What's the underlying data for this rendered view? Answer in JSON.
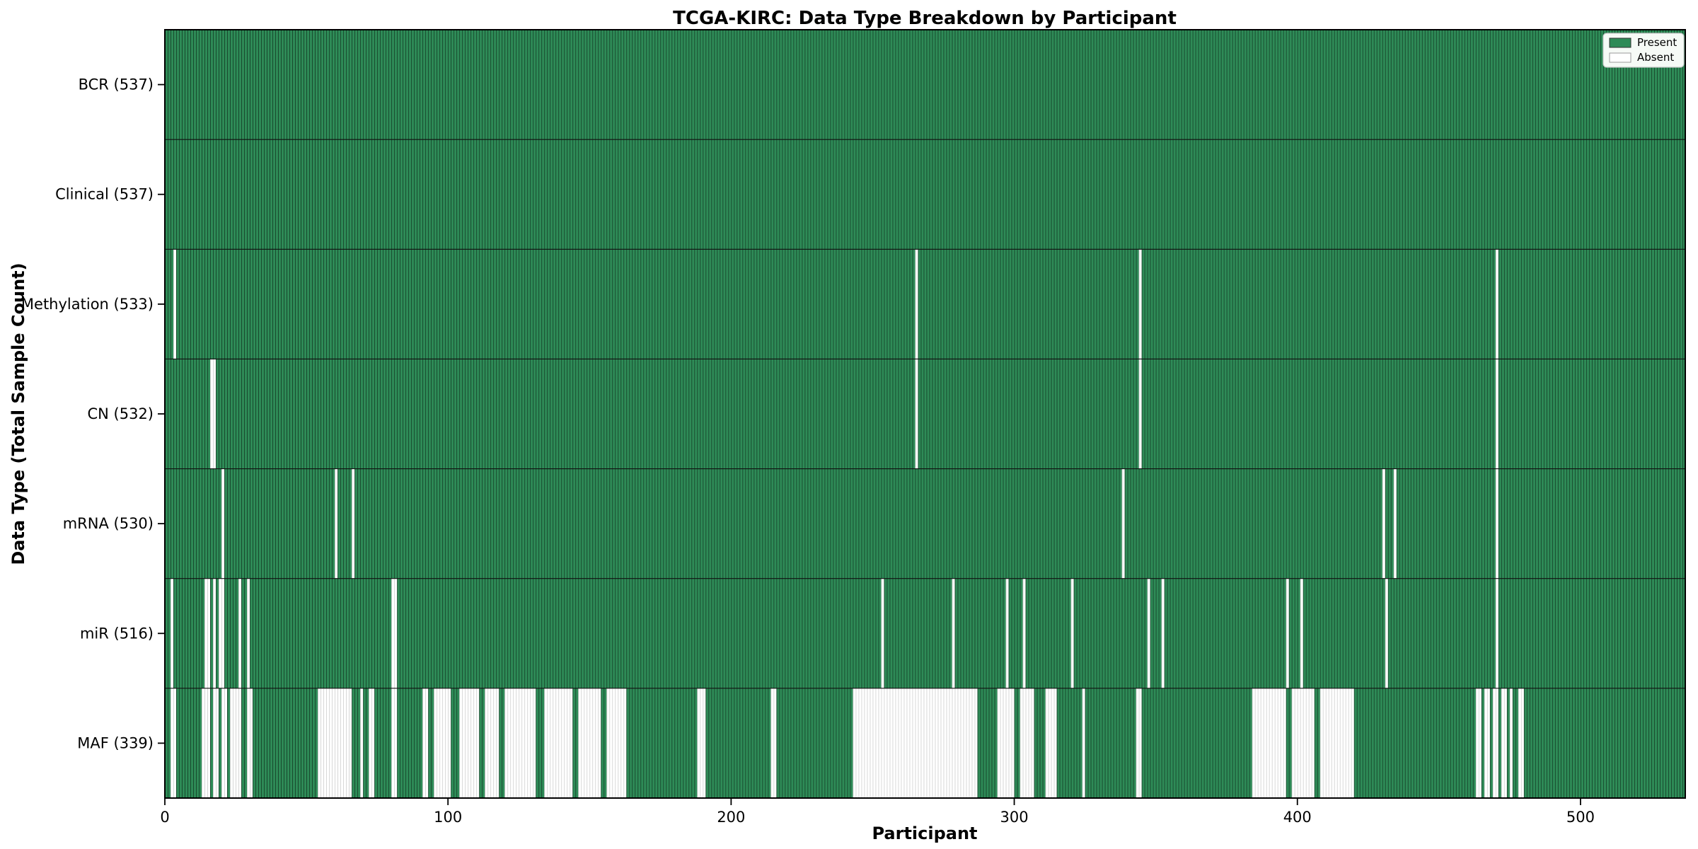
{
  "colors": {
    "present": "#2e8b57",
    "absent": "#ffffff",
    "present_edge": "rgba(0,0,0,0.50)",
    "absent_edge": "rgba(0,0,0,0.17)",
    "axis": "#000000",
    "separator": "#111111",
    "legend_bg": "#f6faf6",
    "legend_border": "#c9c9c9",
    "legend_swatch_edge": "#333333"
  },
  "chart_data": {
    "type": "heatmap",
    "title": "TCGA-KIRC: Data Type Breakdown by Participant",
    "xlabel": "Participant",
    "ylabel": "Data Type (Total Sample Count)",
    "x_ticks": [
      0,
      100,
      200,
      300,
      400,
      500
    ],
    "x_range": [
      0,
      537
    ],
    "total_participants": 537,
    "grid": false,
    "legend": {
      "position": "upper right",
      "entries": [
        {
          "label": "Present",
          "color": "#2e8b57"
        },
        {
          "label": "Absent",
          "color": "#ffffff"
        }
      ]
    },
    "rows": [
      {
        "label": "BCR (537)",
        "data_type": "BCR",
        "present_count": 537,
        "absent_ranges": []
      },
      {
        "label": "Clinical (537)",
        "data_type": "Clinical",
        "present_count": 537,
        "absent_ranges": []
      },
      {
        "label": "Methylation (533)",
        "data_type": "Methylation",
        "present_count": 533,
        "absent_ranges": [
          [
            3,
            3
          ],
          [
            265,
            265
          ],
          [
            344,
            344
          ],
          [
            470,
            470
          ]
        ]
      },
      {
        "label": "CN (532)",
        "data_type": "CN",
        "present_count": 532,
        "absent_ranges": [
          [
            16,
            17
          ],
          [
            265,
            265
          ],
          [
            344,
            344
          ],
          [
            470,
            470
          ]
        ]
      },
      {
        "label": "mRNA (530)",
        "data_type": "mRNA",
        "present_count": 530,
        "absent_ranges": [
          [
            20,
            20
          ],
          [
            60,
            60
          ],
          [
            66,
            66
          ],
          [
            338,
            338
          ],
          [
            430,
            430
          ],
          [
            434,
            434
          ],
          [
            470,
            470
          ]
        ]
      },
      {
        "label": "miR (516)",
        "data_type": "miR",
        "present_count": 516,
        "absent_ranges": [
          [
            2,
            2
          ],
          [
            14,
            15
          ],
          [
            17,
            17
          ],
          [
            19,
            20
          ],
          [
            26,
            26
          ],
          [
            29,
            29
          ],
          [
            80,
            81
          ],
          [
            253,
            253
          ],
          [
            278,
            278
          ],
          [
            297,
            297
          ],
          [
            303,
            303
          ],
          [
            320,
            320
          ],
          [
            347,
            347
          ],
          [
            352,
            352
          ],
          [
            396,
            396
          ],
          [
            401,
            401
          ],
          [
            431,
            431
          ],
          [
            470,
            470
          ]
        ]
      },
      {
        "label": "MAF (339)",
        "data_type": "MAF",
        "present_count": 339,
        "absent_ranges": [
          [
            2,
            3
          ],
          [
            13,
            15
          ],
          [
            17,
            18
          ],
          [
            20,
            21
          ],
          [
            23,
            26
          ],
          [
            29,
            30
          ],
          [
            54,
            65
          ],
          [
            69,
            69
          ],
          [
            72,
            73
          ],
          [
            80,
            81
          ],
          [
            91,
            92
          ],
          [
            95,
            100
          ],
          [
            104,
            110
          ],
          [
            113,
            117
          ],
          [
            120,
            130
          ],
          [
            134,
            143
          ],
          [
            146,
            153
          ],
          [
            156,
            162
          ],
          [
            188,
            190
          ],
          [
            214,
            215
          ],
          [
            243,
            286
          ],
          [
            294,
            299
          ],
          [
            302,
            306
          ],
          [
            311,
            314
          ],
          [
            324,
            324
          ],
          [
            343,
            344
          ],
          [
            384,
            395
          ],
          [
            398,
            405
          ],
          [
            408,
            419
          ],
          [
            463,
            464
          ],
          [
            466,
            467
          ],
          [
            469,
            470
          ],
          [
            472,
            473
          ],
          [
            475,
            475
          ],
          [
            478,
            479
          ]
        ]
      }
    ]
  }
}
